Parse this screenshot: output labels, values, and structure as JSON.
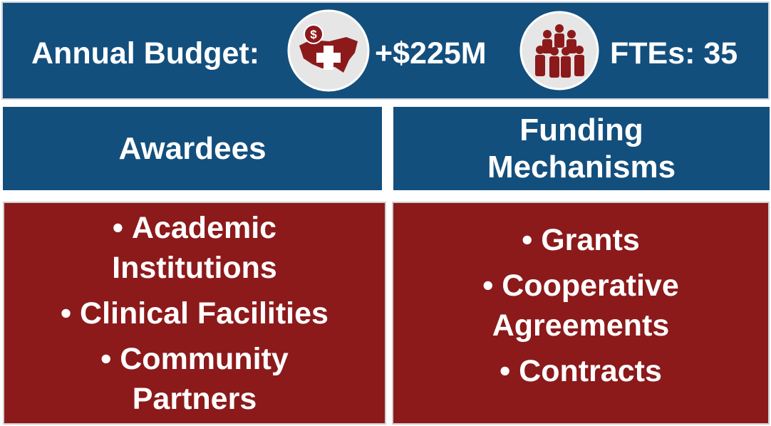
{
  "header": {
    "budget_label": "Annual Budget:",
    "budget_value": "+$225M",
    "fte": "FTEs: 35"
  },
  "columns": [
    {
      "heading": "Awardees",
      "items": [
        "Academic Institutions",
        "Clinical Facilities",
        "Community Partners"
      ]
    },
    {
      "heading": "Funding Mechanisms",
      "items": [
        "Grants",
        "Cooperative Agreements",
        "Contracts"
      ]
    }
  ]
}
